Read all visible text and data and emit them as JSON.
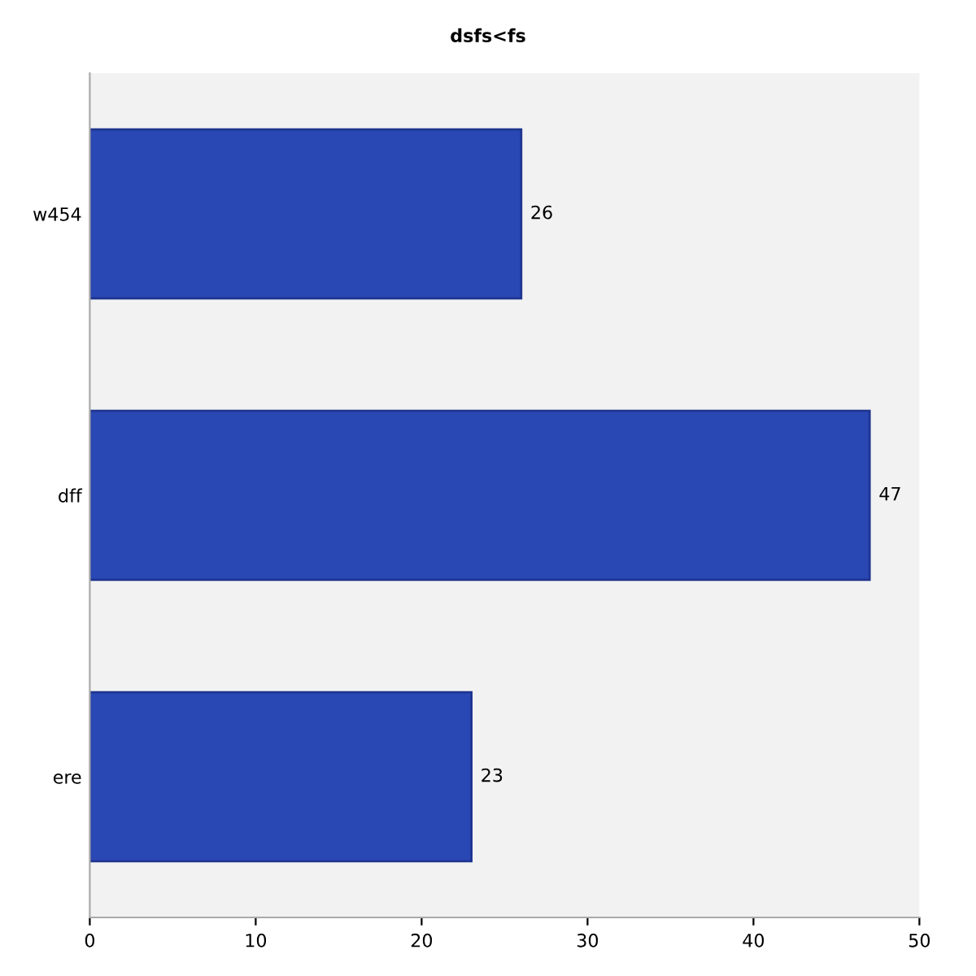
{
  "chart_data": {
    "type": "bar",
    "orientation": "horizontal",
    "title": "dsfs<fs",
    "categories": [
      "w454",
      "dff",
      "ere"
    ],
    "values": [
      26,
      47,
      23
    ],
    "color": "#2a48b4",
    "xlim": [
      0,
      50
    ],
    "xticks": [
      0,
      10,
      20,
      30,
      40,
      50
    ],
    "data_labels": true,
    "grid": false
  }
}
